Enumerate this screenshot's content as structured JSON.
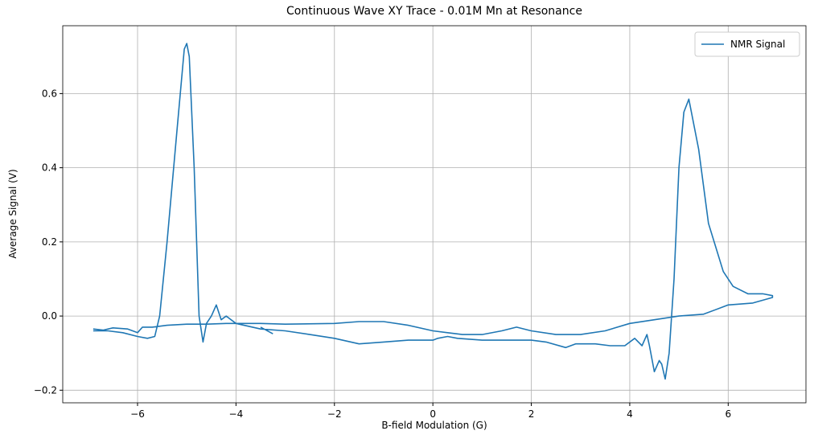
{
  "chart_data": {
    "type": "line",
    "title": "Continuous Wave XY Trace - 0.01M Mn at Resonance",
    "xlabel": "B-field Modulation (G)",
    "ylabel": "Average Signal (V)",
    "x": [
      -6.9,
      -6.7,
      -6.5,
      -6.2,
      -6.0,
      -5.9,
      -5.7,
      -5.4,
      -5.0,
      -4.6,
      -4.2,
      -3.5,
      -3,
      -2,
      -1.5,
      -1,
      -0.5,
      0,
      0.3,
      0.6,
      1,
      1.4,
      1.7,
      2,
      2.5,
      3,
      3.5,
      4,
      4.5,
      5,
      5.5,
      6,
      6.5,
      6.9,
      6.9,
      6.7,
      6.4,
      6.1,
      5.9,
      5.6,
      5.4,
      5.2,
      5.1,
      5.0,
      4.9,
      4.8,
      4.72,
      4.65,
      4.6,
      4.5,
      4.4,
      4.35,
      4.25,
      4.1,
      3.9,
      3.6,
      3.3,
      2.9,
      2.7,
      2.3,
      2,
      1.5,
      1,
      0.5,
      0.3,
      0.1,
      0,
      -0.5,
      -1,
      -1.5,
      -2,
      -2.5,
      -3,
      -3.5,
      -4,
      -4.2,
      -4.3,
      -4.4,
      -4.5,
      -4.6,
      -4.67,
      -4.75,
      -4.85,
      -4.95,
      -5.0,
      -5.05,
      -5.2,
      -5.4,
      -5.55,
      -5.65,
      -5.8,
      -6.0,
      -6.3,
      -6.6,
      -6.9,
      null,
      -3.5,
      -3.25
    ],
    "series": [
      {
        "name": "NMR Signal",
        "color": "#1f77b4",
        "values": [
          -0.035,
          -0.038,
          -0.032,
          -0.035,
          -0.045,
          -0.03,
          -0.03,
          -0.025,
          -0.022,
          -0.022,
          -0.02,
          -0.02,
          -0.022,
          -0.02,
          -0.015,
          -0.015,
          -0.025,
          -0.04,
          -0.045,
          -0.05,
          -0.05,
          -0.04,
          -0.03,
          -0.04,
          -0.05,
          -0.05,
          -0.04,
          -0.02,
          -0.01,
          0.0,
          0.005,
          0.03,
          0.035,
          0.05,
          0.055,
          0.06,
          0.06,
          0.08,
          0.12,
          0.25,
          0.45,
          0.585,
          0.55,
          0.4,
          0.1,
          -0.1,
          -0.17,
          -0.13,
          -0.12,
          -0.15,
          -0.08,
          -0.05,
          -0.08,
          -0.06,
          -0.08,
          -0.08,
          -0.075,
          -0.075,
          -0.085,
          -0.07,
          -0.065,
          -0.065,
          -0.065,
          -0.06,
          -0.055,
          -0.06,
          -0.065,
          -0.065,
          -0.07,
          -0.075,
          -0.06,
          -0.05,
          -0.04,
          -0.035,
          -0.02,
          0.0,
          -0.01,
          0.03,
          0.0,
          -0.02,
          -0.07,
          0.0,
          0.4,
          0.7,
          0.735,
          0.72,
          0.5,
          0.2,
          0.0,
          -0.055,
          -0.06,
          -0.055,
          -0.045,
          -0.04,
          -0.04,
          null,
          -0.03,
          -0.048
        ]
      }
    ],
    "xlim": [
      -7.52,
      7.58
    ],
    "ylim": [
      -0.234,
      0.783
    ],
    "xticks": [
      {
        "value": -6,
        "label": "−6"
      },
      {
        "value": -4,
        "label": "−4"
      },
      {
        "value": -2,
        "label": "−2"
      },
      0,
      2,
      4,
      6
    ],
    "yticks": [
      {
        "value": -0.2,
        "label": "−0.2"
      },
      {
        "value": 0,
        "label": "0.0"
      },
      0.2,
      0.4,
      0.6
    ],
    "grid": true,
    "legend": "upper right"
  }
}
